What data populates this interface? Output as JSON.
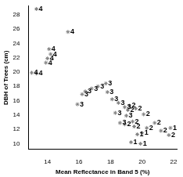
{
  "chart_data": {
    "type": "scatter",
    "x_label": "Mean Reflectance in Band 5 (%)",
    "y_label": "DBH of Trees (cm)",
    "x": [
      13.3,
      15.3,
      14.1,
      14.2,
      14.0,
      13.9,
      13.0,
      13.3,
      17.7,
      17.2,
      16.8,
      16.4,
      16.2,
      17.8,
      15.9,
      18.1,
      18.5,
      18.9,
      18.3,
      19.0,
      18.6,
      19.2,
      19.6,
      20.1,
      19.1,
      19.4,
      18.9,
      19.5,
      20.8,
      21.2,
      21.7,
      20.3,
      19.3,
      19.9,
      21.8,
      20.0,
      19.7
    ],
    "values": [
      28.8,
      25.6,
      23.2,
      22.5,
      21.9,
      21.3,
      19.9,
      19.8,
      18.4,
      18.0,
      17.7,
      17.3,
      16.9,
      17.2,
      15.5,
      16.2,
      15.7,
      15.1,
      14.3,
      13.9,
      12.9,
      15.3,
      14.9,
      14.1,
      14.7,
      13.1,
      12.7,
      12.4,
      12.9,
      11.8,
      11.2,
      12.2,
      10.2,
      10.0,
      12.2,
      11.5,
      11.3
    ],
    "point_labels": [
      "4",
      "4",
      "4",
      "4",
      "4",
      "4",
      "4",
      "4",
      "3",
      "3",
      "3",
      "3",
      "3",
      "3",
      "3",
      "3",
      "3",
      "3",
      "3",
      "3",
      "3",
      "2",
      "2",
      "2",
      "2",
      "2",
      "2",
      "2",
      "2",
      "2",
      "2",
      "2",
      "1",
      "1",
      "1",
      "1",
      "1"
    ],
    "color": "#808080",
    "marker": "star",
    "xlim": [
      12.8,
      22.2
    ],
    "xticks": [
      14,
      16,
      18,
      20,
      22
    ],
    "ylim": [
      9.2,
      29.2
    ],
    "yticks": [
      10,
      12,
      14,
      16,
      18,
      20,
      22,
      24,
      26,
      28
    ],
    "grid": false
  }
}
